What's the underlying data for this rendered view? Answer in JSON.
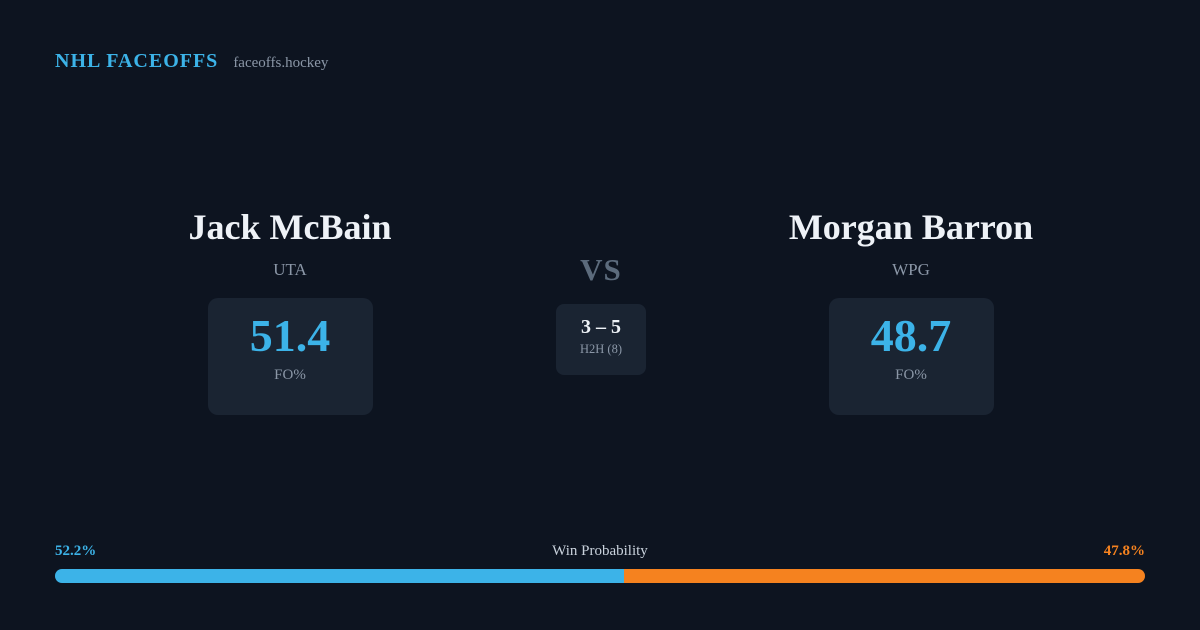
{
  "header": {
    "brand": "NHL FACEOFFS",
    "site": "faceoffs.hockey"
  },
  "matchup": {
    "vs_label": "VS",
    "h2h": {
      "score": "3 – 5",
      "label": "H2H (8)"
    },
    "left": {
      "name": "Jack McBain",
      "team": "UTA",
      "fo_pct": "51.4",
      "stat_label": "FO%"
    },
    "right": {
      "name": "Morgan Barron",
      "team": "WPG",
      "fo_pct": "48.7",
      "stat_label": "FO%"
    }
  },
  "win_probability": {
    "label": "Win Probability",
    "left_pct": "52.2%",
    "right_pct": "47.8%",
    "left_value": 52.2,
    "right_value": 47.8
  },
  "chart_data": {
    "type": "bar",
    "title": "Win Probability",
    "categories": [
      "Jack McBain (UTA)",
      "Morgan Barron (WPG)"
    ],
    "values": [
      52.2,
      47.8
    ],
    "unit": "%",
    "layout": "horizontal-stacked",
    "colors": [
      "#3cb3e8",
      "#f5821f"
    ],
    "related_stats": {
      "faceoff_pct": [
        51.4,
        48.7
      ],
      "h2h_score": "3 – 5",
      "h2h_games": 8
    }
  },
  "colors": {
    "background": "#0d1420",
    "card": "#1a2432",
    "accent_blue": "#3cb3e8",
    "accent_orange": "#f5821f",
    "muted": "#8b97a7",
    "vs_color": "#5c6b7c",
    "text": "#eef2f7"
  }
}
